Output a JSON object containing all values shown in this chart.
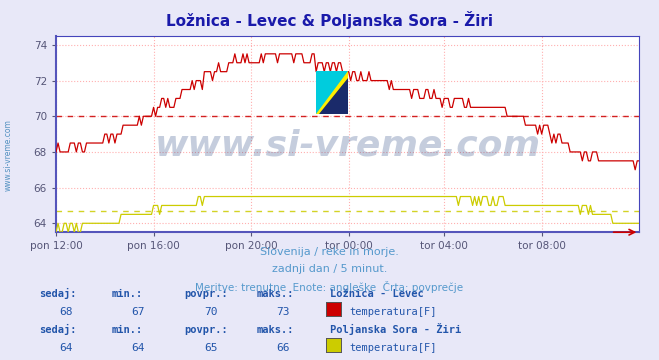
{
  "title": "Ložnica - Levec & Poljanska Sora - Žiri",
  "title_color": "#1a1aaa",
  "bg_color": "#e8e8f8",
  "plot_bg_color": "#ffffff",
  "grid_color": "#ffb0b0",
  "xlabel_times": [
    "pon 12:00",
    "pon 16:00",
    "pon 20:00",
    "tor 00:00",
    "tor 04:00",
    "tor 08:00"
  ],
  "ylim": [
    63.5,
    74.5
  ],
  "yticks": [
    64,
    66,
    68,
    70,
    72,
    74
  ],
  "line1_color": "#cc0000",
  "line2_color": "#cccc00",
  "avg1": 70.0,
  "avg2": 64.7,
  "watermark": "www.si-vreme.com",
  "watermark_color": "#1a3a7a",
  "watermark_alpha": 0.25,
  "subtitle1": "Slovenija / reke in morje.",
  "subtitle2": "zadnji dan / 5 minut.",
  "subtitle3": "Meritve: trenutne  Enote: angleške  Črta: povprečje",
  "subtitle_color": "#5599cc",
  "legend1_label": "Ložnica - Levec",
  "legend2_label": "Poljanska Sora - Žiri",
  "leg_sub": "temperatura[F]",
  "stats1": {
    "sedaj": 68,
    "min": 67,
    "povpr": 70,
    "maks": 73
  },
  "stats2": {
    "sedaj": 64,
    "min": 64,
    "povpr": 65,
    "maks": 66
  },
  "stats_header_color": "#2255aa",
  "stats_val_color": "#2255aa",
  "left_label": "www.si-vreme.com",
  "left_label_color": "#4488bb",
  "axis_color": "#4444bb",
  "tick_color": "#555577",
  "n_points": 288
}
